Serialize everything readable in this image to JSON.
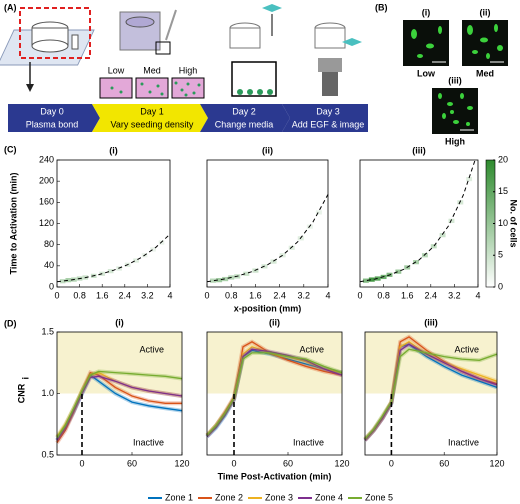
{
  "panel_a": {
    "label": "(A)",
    "density_labels": [
      "Low",
      "Med",
      "High"
    ],
    "timeline": [
      {
        "day": "Day 0",
        "step": "Plasma bond"
      },
      {
        "day": "Day 1",
        "step": "Vary seeding density"
      },
      {
        "day": "Day 2",
        "step": "Change media"
      },
      {
        "day": "Day 3",
        "step": "Add EGF & image"
      }
    ]
  },
  "panel_b": {
    "label": "(B)",
    "images": [
      {
        "id": "(i)",
        "level": "Low"
      },
      {
        "id": "(ii)",
        "level": "Med"
      },
      {
        "id": "(iii)",
        "level": "High"
      }
    ]
  },
  "panel_c_label": "(C)",
  "panel_d_label": "(D)",
  "chart_data": [
    {
      "type": "heatmap",
      "title": "(i)",
      "ylabel": "Time to Activation (min)",
      "xlim": [
        0,
        4
      ],
      "xticks": [
        0,
        0.8,
        1.6,
        2.4,
        3.2,
        4
      ],
      "ylim": [
        0,
        240
      ],
      "yticks": [
        0,
        40,
        80,
        120,
        160,
        200,
        240
      ],
      "bin_size": [
        0.2,
        8
      ],
      "clim": [
        0,
        20
      ],
      "cmap": [
        "#ffffff",
        "#2e8b2e"
      ],
      "cells": {
        "x": [
          0.2,
          0.4,
          0.6,
          0.8,
          1.0,
          1.3,
          1.6,
          1.9,
          2.2,
          2.5,
          2.8,
          3.1,
          3.4,
          3.7
        ],
        "y": [
          11,
          13,
          14,
          16,
          18,
          21,
          25,
          30,
          35,
          42,
          50,
          60,
          71,
          84
        ],
        "counts": [
          6,
          8,
          7,
          6,
          5,
          5,
          4,
          4,
          3,
          3,
          3,
          2,
          2,
          2
        ]
      },
      "fit": {
        "x": [
          0,
          0.5,
          1,
          1.5,
          2,
          2.5,
          3,
          3.5,
          4
        ],
        "y": [
          10,
          13.3,
          17.8,
          23.7,
          31.6,
          42.2,
          56.3,
          75.1,
          100
        ]
      }
    },
    {
      "type": "heatmap",
      "title": "(ii)",
      "xlabel": "x-position (mm)",
      "xlim": [
        0,
        4
      ],
      "xticks": [
        0,
        0.8,
        1.6,
        2.4,
        3.2,
        4
      ],
      "ylim": [
        0,
        240
      ],
      "bin_size": [
        0.2,
        8
      ],
      "clim": [
        0,
        20
      ],
      "cmap": [
        "#ffffff",
        "#2e8b2e"
      ],
      "cells": {
        "x": [
          0.2,
          0.4,
          0.6,
          0.8,
          1.0,
          1.3,
          1.6,
          1.9,
          2.2,
          2.5,
          2.8,
          3.1,
          3.4,
          3.7
        ],
        "y": [
          12,
          13,
          15,
          18,
          20,
          25,
          31,
          39,
          48,
          60,
          74,
          92,
          114,
          141
        ],
        "counts": [
          7,
          9,
          8,
          7,
          6,
          5,
          5,
          4,
          4,
          3,
          3,
          3,
          2,
          2
        ]
      },
      "fit": {
        "x": [
          0,
          0.5,
          1,
          1.5,
          2,
          2.5,
          3,
          3.5,
          4
        ],
        "y": [
          10,
          14.3,
          20.5,
          29.3,
          41.9,
          59.9,
          85.7,
          122.6,
          175
        ]
      }
    },
    {
      "type": "heatmap",
      "title": "(iii)",
      "xlim": [
        0,
        4
      ],
      "xticks": [
        0,
        0.8,
        1.6,
        2.4,
        3.2,
        4
      ],
      "ylim": [
        0,
        240
      ],
      "bin_size": [
        0.2,
        8
      ],
      "clim": [
        0,
        20
      ],
      "cmap": [
        "#ffffff",
        "#2e8b2e"
      ],
      "cells": {
        "x": [
          0.2,
          0.4,
          0.6,
          0.8,
          1.0,
          1.3,
          1.6,
          1.9,
          2.2,
          2.5,
          2.8,
          3.1,
          3.4,
          3.7
        ],
        "y": [
          12,
          14,
          16,
          19,
          23,
          29,
          37,
          47,
          60,
          77,
          98,
          125,
          160,
          204
        ],
        "counts": [
          12,
          18,
          16,
          14,
          12,
          10,
          9,
          8,
          7,
          6,
          5,
          4,
          4,
          3
        ]
      },
      "fit": {
        "x": [
          0,
          0.5,
          1,
          1.5,
          2,
          2.5,
          3,
          3.5,
          3.9
        ],
        "y": [
          10,
          15,
          22.6,
          33.9,
          51.1,
          76.8,
          115.5,
          173.7,
          240
        ]
      },
      "colorbar": {
        "label": "No. of cells",
        "ticks": [
          0,
          5,
          10,
          15,
          20
        ]
      }
    },
    {
      "type": "line",
      "title": "(i)",
      "ylabel": "CNR",
      "ylabel_sub": "i",
      "xlim": [
        -30,
        120
      ],
      "xticks": [
        0,
        60,
        120
      ],
      "ylim": [
        0.5,
        1.5
      ],
      "yticks": [
        0.5,
        {
          "value": 1,
          "label": "1.0"
        },
        1.5
      ],
      "shade_above": 1,
      "vline": 0,
      "annotations": [
        "Active",
        "Inactive"
      ],
      "x": [
        -30,
        -20,
        -10,
        0,
        10,
        20,
        40,
        60,
        80,
        100,
        120
      ],
      "series": [
        {
          "name": "Zone 1",
          "color": "#0072bd",
          "values": [
            0.62,
            0.72,
            0.85,
            1.0,
            1.15,
            1.1,
            1.0,
            0.93,
            0.9,
            0.88,
            0.86
          ]
        },
        {
          "name": "Zone 2",
          "color": "#d95319",
          "values": [
            0.6,
            0.7,
            0.85,
            1.02,
            1.17,
            1.15,
            1.05,
            0.98,
            0.94,
            0.92,
            0.92
          ]
        },
        {
          "name": "Zone 3",
          "color": "#edb120",
          "values": [
            0.65,
            0.75,
            0.88,
            1.02,
            1.15,
            1.17,
            1.1,
            1.05,
            1.02,
            1.0,
            0.98
          ]
        },
        {
          "name": "Zone 4",
          "color": "#7e2f8e",
          "values": [
            0.62,
            0.72,
            0.86,
            1.0,
            1.13,
            1.14,
            1.1,
            1.05,
            1.02,
            1.0,
            0.98
          ]
        },
        {
          "name": "Zone 5",
          "color": "#77ac30",
          "values": [
            0.64,
            0.74,
            0.88,
            1.02,
            1.15,
            1.18,
            1.17,
            1.16,
            1.15,
            1.14,
            1.12
          ]
        }
      ]
    },
    {
      "type": "line",
      "title": "(ii)",
      "xlabel": "Time Post-Activation (min)",
      "xlim": [
        -30,
        120
      ],
      "xticks": [
        0,
        60,
        120
      ],
      "ylim": [
        0.5,
        1.5
      ],
      "shade_above": 1,
      "vline": 0,
      "annotations": [
        "Active",
        "Inactive"
      ],
      "x": [
        -30,
        -20,
        -10,
        0,
        10,
        20,
        40,
        60,
        80,
        100,
        120
      ],
      "series": [
        {
          "color": "#0072bd",
          "values": [
            0.65,
            0.72,
            0.82,
            0.95,
            1.3,
            1.35,
            1.32,
            1.28,
            1.24,
            1.2,
            1.17
          ]
        },
        {
          "color": "#d95319",
          "values": [
            0.66,
            0.74,
            0.85,
            0.97,
            1.38,
            1.42,
            1.33,
            1.27,
            1.22,
            1.18,
            1.15
          ]
        },
        {
          "color": "#edb120",
          "values": [
            0.66,
            0.74,
            0.84,
            0.96,
            1.32,
            1.38,
            1.33,
            1.3,
            1.26,
            1.2,
            1.17
          ]
        },
        {
          "color": "#7e2f8e",
          "values": [
            0.65,
            0.73,
            0.83,
            0.95,
            1.3,
            1.36,
            1.34,
            1.31,
            1.27,
            1.2,
            1.15
          ]
        },
        {
          "color": "#77ac30",
          "values": [
            0.66,
            0.74,
            0.84,
            0.96,
            1.28,
            1.33,
            1.33,
            1.3,
            1.28,
            1.22,
            1.17
          ]
        }
      ]
    },
    {
      "type": "line",
      "title": "(iii)",
      "xlim": [
        -30,
        120
      ],
      "xticks": [
        0,
        60,
        120
      ],
      "ylim": [
        0.5,
        1.5
      ],
      "shade_above": 1,
      "vline": 0,
      "annotations": [
        "Active",
        "Inactive"
      ],
      "x": [
        -30,
        -20,
        -10,
        0,
        10,
        20,
        40,
        60,
        80,
        100,
        120
      ],
      "series": [
        {
          "color": "#0072bd",
          "values": [
            0.62,
            0.7,
            0.8,
            0.92,
            1.38,
            1.4,
            1.3,
            1.22,
            1.15,
            1.1,
            1.05
          ]
        },
        {
          "color": "#d95319",
          "values": [
            0.62,
            0.7,
            0.8,
            0.93,
            1.42,
            1.46,
            1.35,
            1.26,
            1.18,
            1.12,
            1.08
          ]
        },
        {
          "color": "#edb120",
          "values": [
            0.63,
            0.71,
            0.81,
            0.93,
            1.38,
            1.42,
            1.32,
            1.25,
            1.2,
            1.15,
            1.1
          ]
        },
        {
          "color": "#7e2f8e",
          "values": [
            0.62,
            0.7,
            0.8,
            0.92,
            1.35,
            1.4,
            1.32,
            1.25,
            1.18,
            1.12,
            1.07
          ]
        },
        {
          "color": "#77ac30",
          "values": [
            0.63,
            0.71,
            0.82,
            0.93,
            1.3,
            1.36,
            1.33,
            1.3,
            1.28,
            1.27,
            1.32
          ]
        }
      ]
    }
  ]
}
